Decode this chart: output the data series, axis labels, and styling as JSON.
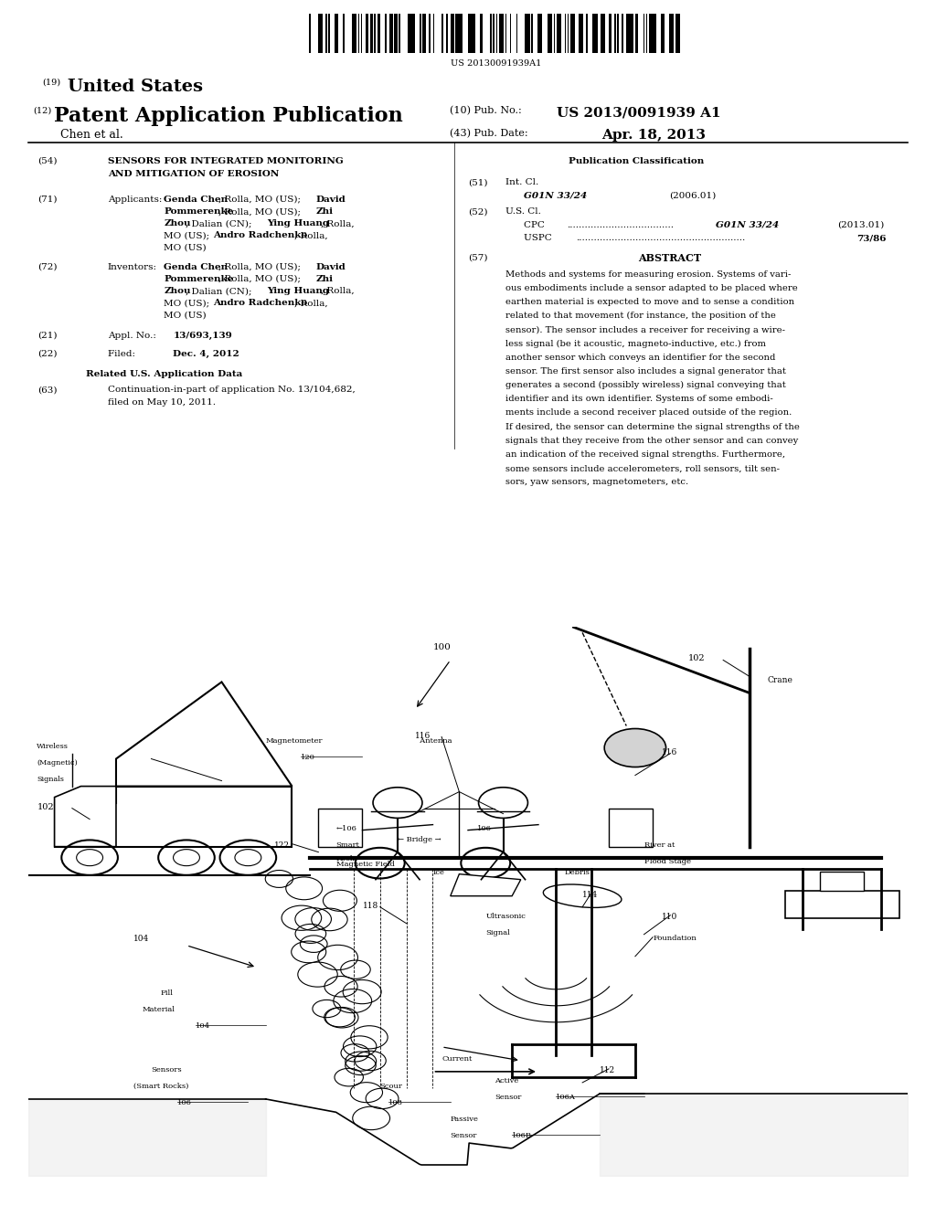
{
  "bg_color": "#ffffff",
  "text_color": "#000000",
  "barcode_text": "US 20130091939A1",
  "header_19": "(19)",
  "header_19_text": "United States",
  "header_12": "(12)",
  "header_12_text": "Patent Application Publication",
  "pub_no_label": "(10) Pub. No.:",
  "pub_no_value": "US 2013/0091939 A1",
  "author_label": "Chen et al.",
  "pub_date_label": "(43) Pub. Date:",
  "pub_date_value": "Apr. 18, 2013",
  "field54_label": "(54)",
  "field54_title1": "SENSORS FOR INTEGRATED MONITORING",
  "field54_title2": "AND MITIGATION OF EROSION",
  "field71_label": "(71)",
  "field71_title": "Applicants:",
  "field72_label": "(72)",
  "field72_title": "Inventors:",
  "field21_label": "(21)",
  "field22_label": "(22)",
  "related_header": "Related U.S. Application Data",
  "field63_label": "(63)",
  "pub_class_header": "Publication Classification",
  "field51_label": "(51)",
  "field51_title": "Int. Cl.",
  "field51_class": "G01N 33/24",
  "field51_year": "(2006.01)",
  "field52_label": "(52)",
  "field52_title": "U.S. Cl.",
  "field52_cpc_year": "(2013.01)",
  "field52_uspc_value": "73/86",
  "field57_label": "(57)",
  "field57_header": "ABSTRACT",
  "abstract_text": "Methods and systems for measuring erosion. Systems of vari-\nous embodiments include a sensor adapted to be placed where\nearthen material is expected to move and to sense a condition\nrelated to that movement (for instance, the position of the\nsensor). The sensor includes a receiver for receiving a wire-\nless signal (be it acoustic, magneto-inductive, etc.) from\nanother sensor which conveys an identifier for the second\nsensor. The first sensor also includes a signal generator that\ngenerates a second (possibly wireless) signal conveying that\nidentifier and its own identifier. Systems of some embodi-\nments include a second receiver placed outside of the region.\nIf desired, the sensor can determine the signal strengths of the\nsignals that they receive from the other sensor and can convey\nan indication of the received signal strengths. Furthermore,\nsome sensors include accelerometers, roll sensors, tilt sen-\nsors, yaw sensors, magnetometers, etc."
}
